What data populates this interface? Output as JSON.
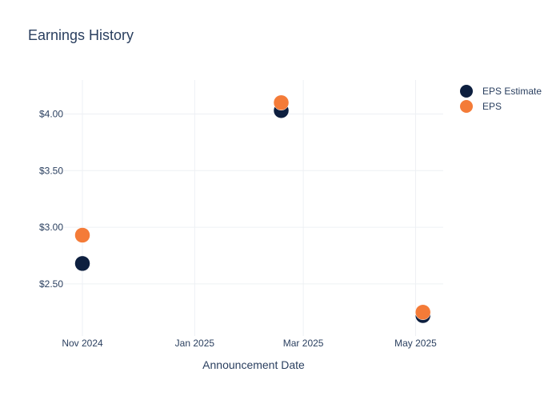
{
  "chart_data": {
    "type": "scatter",
    "title": "Earnings History",
    "xlabel": "Announcement Date",
    "ylabel": "",
    "x_ticks": [
      {
        "date": "2024-11-01",
        "label": "Nov 2024"
      },
      {
        "date": "2025-01-01",
        "label": "Jan 2025"
      },
      {
        "date": "2025-03-01",
        "label": "Mar 2025"
      },
      {
        "date": "2025-05-01",
        "label": "May 2025"
      }
    ],
    "y_ticks": [
      {
        "value": 2.5,
        "label": "$2.50"
      },
      {
        "value": 3.0,
        "label": "$3.00"
      },
      {
        "value": 3.5,
        "label": "$3.50"
      },
      {
        "value": 4.0,
        "label": "$4.00"
      }
    ],
    "xlim": [
      "2024-10-22",
      "2025-05-16"
    ],
    "ylim": [
      2.04,
      4.3
    ],
    "grid": true,
    "legend_position": "top-right",
    "series": [
      {
        "name": "EPS Estimate",
        "color": "#0d1f3f",
        "points": [
          {
            "x": "2024-11-01",
            "y": 2.68
          },
          {
            "x": "2025-02-17",
            "y": 4.03
          },
          {
            "x": "2025-05-05",
            "y": 2.22
          }
        ]
      },
      {
        "name": "EPS",
        "color": "#f47b38",
        "points": [
          {
            "x": "2024-11-01",
            "y": 2.93
          },
          {
            "x": "2025-02-17",
            "y": 4.1
          },
          {
            "x": "2025-05-05",
            "y": 2.25
          }
        ]
      }
    ]
  }
}
